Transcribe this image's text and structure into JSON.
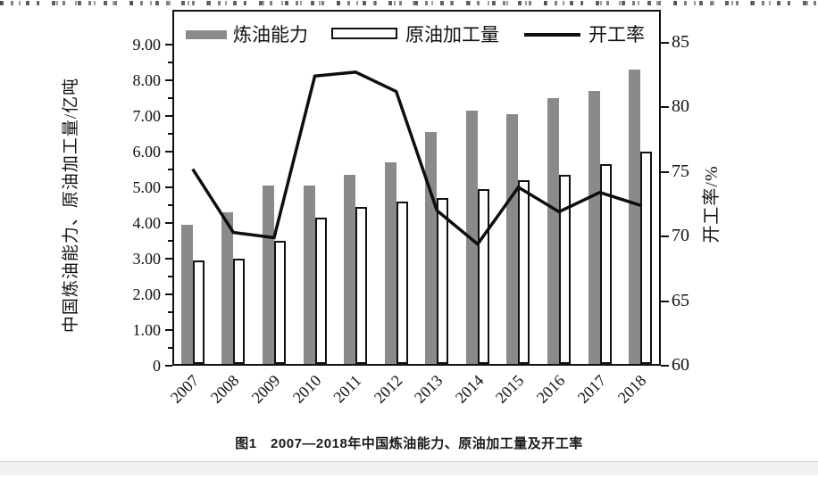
{
  "figure": {
    "caption": "图1　2007—2018年中国炼油能力、原油加工量及开工率"
  },
  "chart_data": {
    "type": "bar",
    "subtype": "grouped-bars-with-line-overlay",
    "title": "图1 2007—2018年中国炼油能力、原油加工量及开工率",
    "categories": [
      "2007",
      "2008",
      "2009",
      "2010",
      "2011",
      "2012",
      "2013",
      "2014",
      "2015",
      "2016",
      "2017",
      "2018"
    ],
    "series": [
      {
        "name": "炼油能力",
        "type": "bar",
        "axis": "left",
        "values": [
          3.95,
          4.3,
          5.05,
          5.05,
          5.35,
          5.7,
          6.55,
          7.15,
          7.05,
          7.5,
          7.7,
          8.3
        ]
      },
      {
        "name": "原油加工量",
        "type": "bar",
        "axis": "left",
        "values": [
          2.95,
          3.0,
          3.5,
          4.15,
          4.45,
          4.6,
          4.7,
          4.95,
          5.2,
          5.35,
          5.65,
          6.0
        ]
      },
      {
        "name": "开工率",
        "type": "line",
        "axis": "right",
        "values": [
          75.2,
          70.3,
          69.9,
          82.4,
          82.7,
          81.2,
          72.0,
          69.4,
          73.8,
          71.9,
          73.4,
          72.4
        ]
      }
    ],
    "left_axis": {
      "label": "中国炼油能力、原油加工量/亿吨",
      "min": 0,
      "max": 9,
      "major_step": 1,
      "minor_step": 0.5,
      "tick_labels": [
        "0",
        "1.00",
        "2.00",
        "3.00",
        "4.00",
        "5.00",
        "6.00",
        "7.00",
        "8.00",
        "9.00"
      ]
    },
    "right_axis": {
      "label": "开工率/%",
      "min": 60,
      "max": 85,
      "major_step": 5,
      "tick_labels": [
        "60",
        "65",
        "70",
        "75",
        "80",
        "85"
      ]
    },
    "legend": {
      "position": "top",
      "entries": [
        "炼油能力",
        "原油加工量",
        "开工率"
      ]
    },
    "grid": "off",
    "colors": {
      "capacity_bar": "#8a8a8a",
      "throughput_bar": "#ffffff",
      "utilization_line": "#0e0e0e",
      "axis": "#111111"
    }
  }
}
